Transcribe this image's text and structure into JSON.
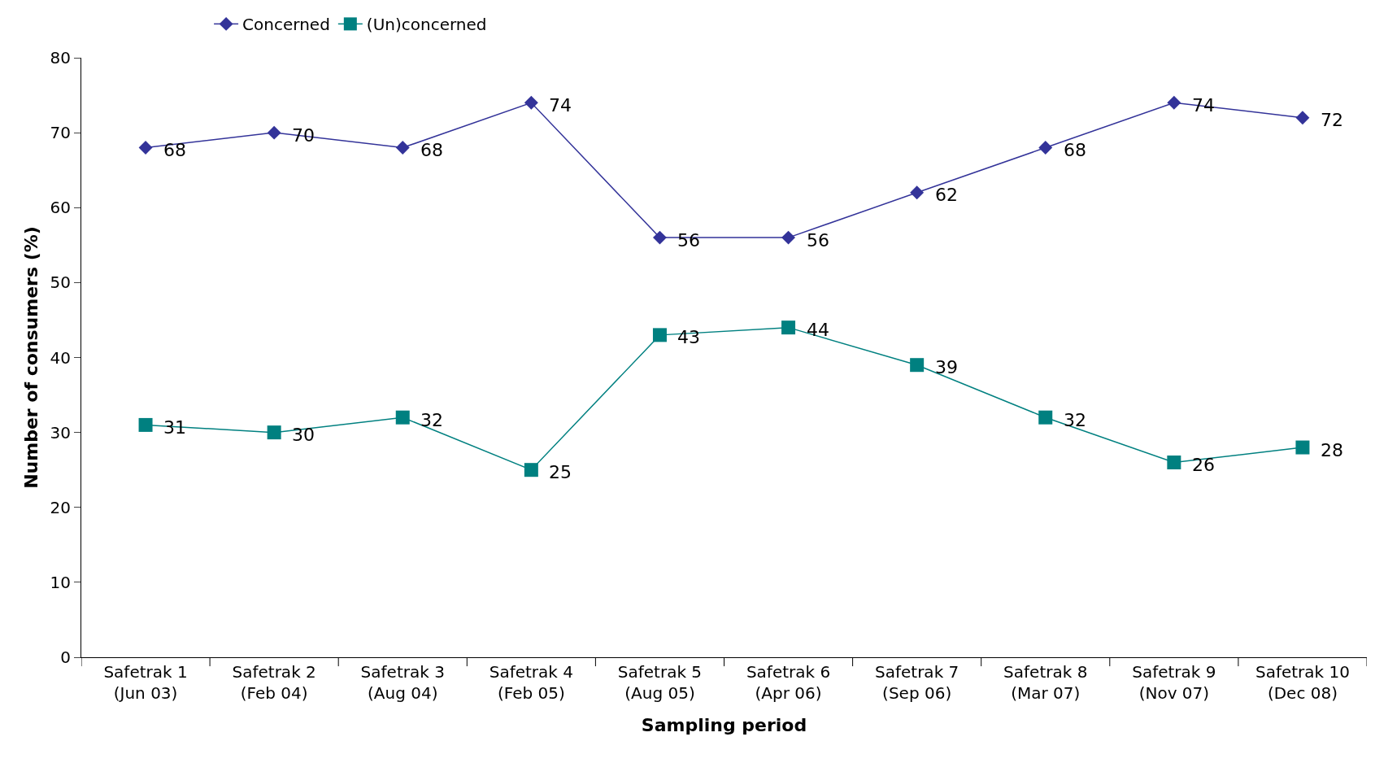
{
  "chart_data": {
    "type": "line",
    "xlabel": "Sampling period",
    "ylabel": "Number of consumers (%)",
    "categories": [
      "Safetrak 1\n(Jun 03)",
      "Safetrak 2\n(Feb 04)",
      "Safetrak 3\n(Aug 04)",
      "Safetrak 4\n(Feb 05)",
      "Safetrak 5\n(Aug 05)",
      "Safetrak 6\n(Apr 06)",
      "Safetrak 7\n(Sep 06)",
      "Safetrak 8\n(Mar 07)",
      "Safetrak 9\n(Nov 07)",
      "Safetrak 10\n(Dec 08)"
    ],
    "series": [
      {
        "name": "Concerned",
        "color": "#333399",
        "marker": "diamond",
        "values": [
          68,
          70,
          68,
          74,
          56,
          56,
          62,
          68,
          74,
          72
        ]
      },
      {
        "name": "(Un)concerned",
        "color": "#008080",
        "marker": "square",
        "values": [
          31,
          30,
          32,
          25,
          43,
          44,
          39,
          32,
          26,
          28
        ]
      }
    ],
    "ylim": [
      0,
      80
    ],
    "yticks": [
      0,
      10,
      20,
      30,
      40,
      50,
      60,
      70,
      80
    ],
    "grid": false,
    "legend": "top left",
    "data_labels": true,
    "line_style": "solid"
  }
}
